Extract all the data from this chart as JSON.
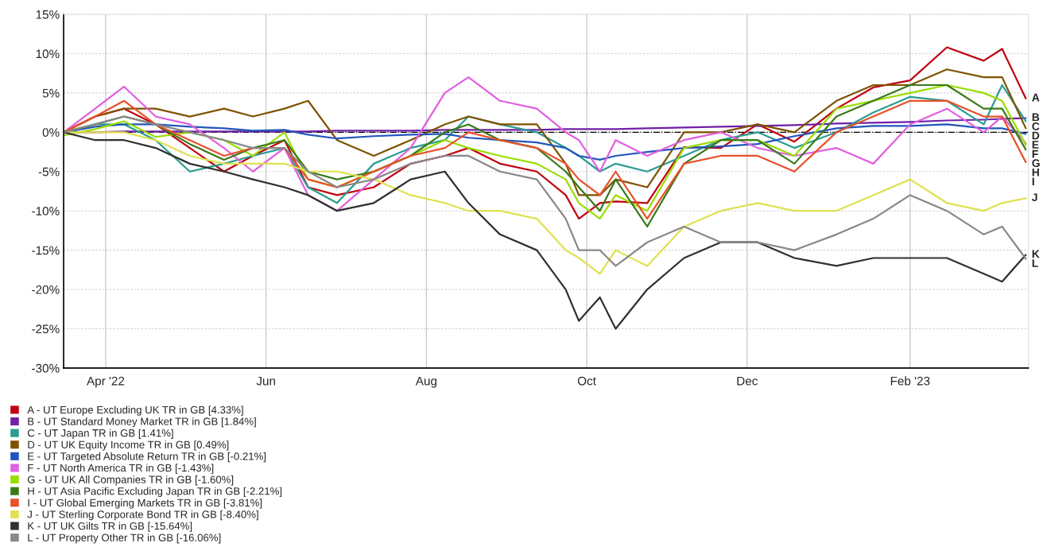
{
  "chart_data": {
    "type": "line",
    "x": [
      "2022-03-16",
      "2022-03-28",
      "2022-04-08",
      "2022-04-20",
      "2022-05-03",
      "2022-05-16",
      "2022-05-27",
      "2022-06-08",
      "2022-06-17",
      "2022-06-28",
      "2022-07-12",
      "2022-07-26",
      "2022-08-08",
      "2022-08-17",
      "2022-08-29",
      "2022-09-12",
      "2022-09-23",
      "2022-09-28",
      "2022-10-06",
      "2022-10-12",
      "2022-10-24",
      "2022-11-07",
      "2022-11-21",
      "2022-12-05",
      "2022-12-19",
      "2023-01-04",
      "2023-01-18",
      "2023-02-01",
      "2023-02-15",
      "2023-03-01",
      "2023-03-08",
      "2023-03-17"
    ],
    "series": [
      {
        "name": "A - UT Europe Excluding UK TR in GB [4.33%]",
        "color": "#c00010",
        "values": [
          0,
          2,
          3,
          1,
          -2,
          -5,
          -3,
          -1,
          -7,
          -8,
          -7,
          -4,
          -3,
          -2,
          -4,
          -5,
          -8,
          -11,
          -9,
          -8.8,
          -9,
          -1.9,
          -2,
          1,
          -1.2,
          3,
          5.7,
          6.6,
          10.8,
          9.1,
          10.6,
          4.3
        ]
      },
      {
        "name": "B - UT Standard Money Market TR in GB [1.84%]",
        "color": "#7020a8",
        "values": [
          0,
          0,
          0.1,
          0.1,
          0.1,
          0.1,
          0.1,
          0.1,
          0.1,
          0.2,
          0.2,
          0.2,
          0.3,
          0.3,
          0.3,
          0.3,
          0.4,
          0.4,
          0.4,
          0.4,
          0.5,
          0.6,
          0.7,
          0.8,
          0.9,
          1.1,
          1.2,
          1.3,
          1.5,
          1.6,
          1.7,
          1.8
        ]
      },
      {
        "name": "C - UT Japan TR in GB [1.41%]",
        "color": "#2a9d90",
        "values": [
          0,
          1,
          1,
          -1,
          -5,
          -4,
          -3,
          -2,
          -7,
          -9,
          -4,
          -2,
          -1,
          2,
          1,
          0,
          -2,
          -3,
          -5,
          -4,
          -5,
          -3,
          -1,
          0,
          -2,
          0,
          2.5,
          4.5,
          4,
          1,
          6,
          1.4
        ]
      },
      {
        "name": "D - UT UK Equity Income TR in GB [0.49%]",
        "color": "#7f5200",
        "values": [
          0,
          2,
          3,
          3,
          2,
          3,
          2,
          3,
          4,
          -1,
          -3,
          -1,
          1,
          2,
          1,
          1,
          -4,
          -8,
          -8,
          -6,
          -7,
          0,
          0,
          1,
          0,
          4,
          6,
          6,
          8,
          7,
          7,
          0.5
        ]
      },
      {
        "name": "E - UT Targeted Absolute Return TR in GB [-0.21%]",
        "color": "#2255bb",
        "values": [
          0,
          0.7,
          1,
          1,
          0.7,
          0.5,
          0.2,
          0.3,
          -0.3,
          -0.8,
          -0.5,
          -0.3,
          -0.2,
          -0.7,
          -1,
          -1.3,
          -2,
          -3,
          -3.5,
          -3,
          -2.5,
          -2,
          -1.8,
          -1.5,
          -0.5,
          0.5,
          0.8,
          0.8,
          1,
          0.5,
          0.5,
          -0.2
        ]
      },
      {
        "name": "F - UT North America TR in GB [-1.43%]",
        "color": "#e060e0",
        "values": [
          0,
          3,
          5.8,
          2,
          1,
          -2,
          -5,
          -2,
          -8,
          -10,
          -6,
          -2,
          5,
          7,
          4,
          3,
          0,
          -1,
          -5,
          -1,
          -3,
          -1,
          0,
          -2,
          -3,
          -2,
          -4,
          1,
          3,
          0,
          2,
          -1.4
        ]
      },
      {
        "name": "G - UT UK All Companies TR in GB [-1.60%]",
        "color": "#99dd00",
        "values": [
          -0.4,
          0.4,
          1.4,
          -0.6,
          0,
          -1,
          -3,
          0,
          -6,
          -7,
          -5,
          -3,
          -1,
          -2,
          -3,
          -4,
          -6,
          -9,
          -11,
          -8,
          -10,
          -2,
          -1,
          -1,
          -3,
          3,
          4,
          5,
          6,
          5,
          4,
          -1.6
        ]
      },
      {
        "name": "H - UT Asia Pacific Excluding Japan TR in GB [-2.21%]",
        "color": "#3a7a1a",
        "values": [
          0,
          1,
          2,
          1,
          -1.5,
          -3.5,
          -2,
          -1,
          -5,
          -6,
          -5,
          -3,
          0,
          1,
          -1,
          -2,
          -5,
          -7,
          -10,
          -6,
          -12,
          -4,
          -1,
          -1,
          -4,
          2,
          4,
          6,
          6,
          3,
          3,
          -2.2
        ]
      },
      {
        "name": "I - UT Global Emerging Markets TR in GB [-3.81%]",
        "color": "#e8502a",
        "values": [
          0,
          2,
          4,
          1,
          -1,
          -3,
          -2,
          -2,
          -6,
          -7,
          -5,
          -3,
          -2,
          0,
          -1,
          -2,
          -4,
          -6,
          -8,
          -5,
          -11,
          -4,
          -3,
          -3,
          -5,
          0,
          2,
          4,
          4,
          2,
          2,
          -3.8
        ]
      },
      {
        "name": "J - UT Sterling Corporate Bond TR in GB [-8.40%]",
        "color": "#e0e050",
        "values": [
          0,
          0,
          0,
          -1,
          -3,
          -4,
          -4,
          -4,
          -5,
          -5,
          -6,
          -8,
          -9,
          -10,
          -10,
          -11,
          -15,
          -16,
          -18,
          -15,
          -17,
          -12,
          -10,
          -9,
          -10,
          -10,
          -8,
          -6,
          -9,
          -10,
          -9,
          -8.4
        ]
      },
      {
        "name": "K - UT UK Gilts TR in GB [-15.64%]",
        "color": "#303030",
        "values": [
          0,
          -1,
          -1,
          -2,
          -4,
          -5,
          -6,
          -7,
          -8,
          -10,
          -9,
          -6,
          -5,
          -9,
          -13,
          -15,
          -20,
          -24,
          -21,
          -25,
          -20,
          -16,
          -14,
          -14,
          -16,
          -17,
          -16,
          -16,
          -16,
          -18,
          -19,
          -15.6
        ]
      },
      {
        "name": "L - UT Property Other TR in GB [-16.06%]",
        "color": "#888888",
        "values": [
          0,
          1,
          2,
          1,
          0,
          -1,
          -2,
          -2,
          -5,
          -7,
          -6,
          -4,
          -3,
          -3,
          -5,
          -6,
          -11,
          -15,
          -15,
          -17,
          -14,
          -12,
          -14,
          -14,
          -15,
          -13,
          -11,
          -8,
          -10,
          -13,
          -12,
          -16.1
        ]
      }
    ],
    "annotations": [
      "A",
      "B",
      "C",
      "D",
      "E",
      "F",
      "G",
      "H",
      "I",
      "J",
      "K",
      "L"
    ],
    "xlim": [
      "2022-03-16",
      "2023-03-18"
    ],
    "xticks": [
      {
        "value": "2022-04-01",
        "label": "Apr '22"
      },
      {
        "value": "2022-06-01",
        "label": "Jun"
      },
      {
        "value": "2022-08-01",
        "label": "Aug"
      },
      {
        "value": "2022-10-01",
        "label": "Oct"
      },
      {
        "value": "2022-12-01",
        "label": "Dec"
      },
      {
        "value": "2023-02-01",
        "label": "Feb '23"
      }
    ],
    "ylim": [
      -30,
      15
    ],
    "yticks": [
      {
        "value": 15,
        "label": "15%"
      },
      {
        "value": 10,
        "label": "10%"
      },
      {
        "value": 5,
        "label": "5%"
      },
      {
        "value": 0,
        "label": "0%"
      },
      {
        "value": -5,
        "label": "-5%"
      },
      {
        "value": -10,
        "label": "-10%"
      },
      {
        "value": -15,
        "label": "-15%"
      },
      {
        "value": -20,
        "label": "-20%"
      },
      {
        "value": -25,
        "label": "-25%"
      },
      {
        "value": -30,
        "label": "-30%"
      }
    ],
    "ref_lines": [
      {
        "axis": "y",
        "value": 0,
        "color": "#000000",
        "line_style": "dashed"
      }
    ],
    "grid": true,
    "legend": "bottom"
  }
}
